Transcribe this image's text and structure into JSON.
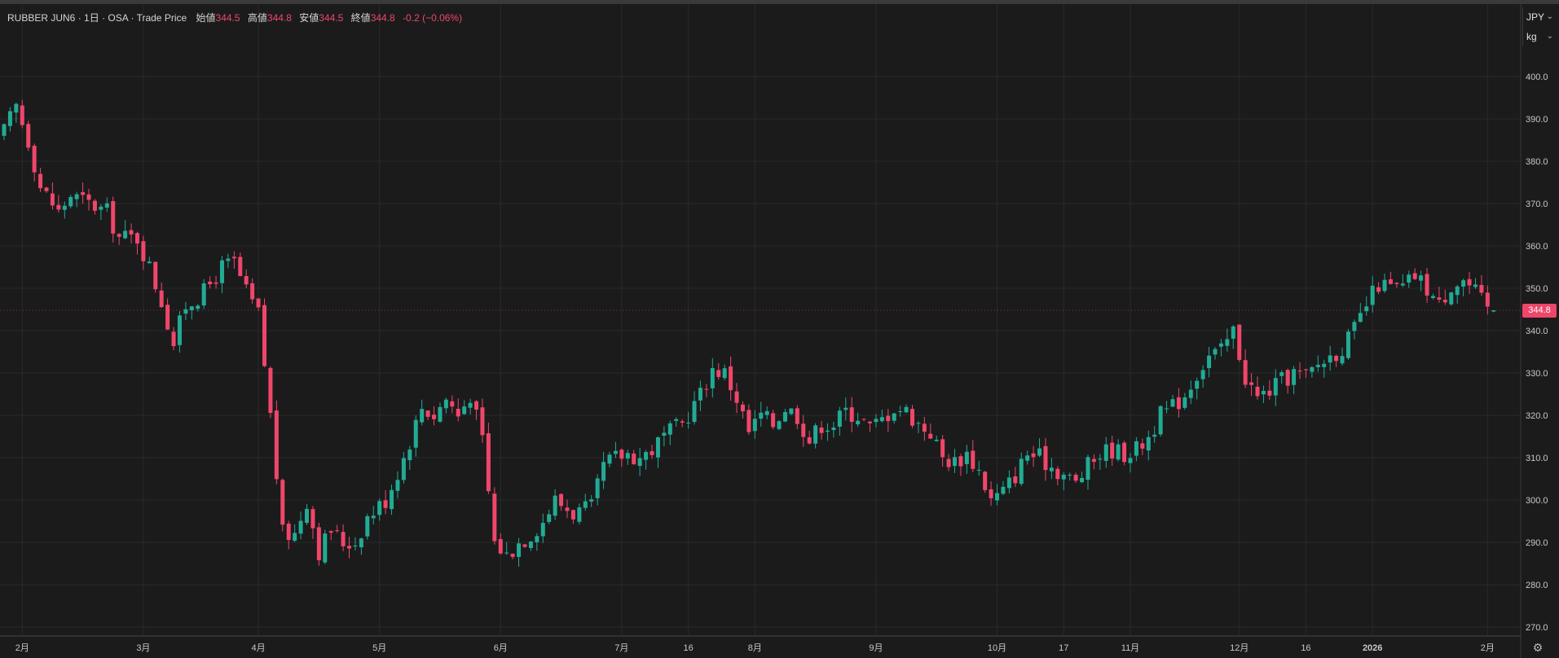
{
  "legend": {
    "symbol": "RUBBER JUN6",
    "sep1": "·",
    "interval": "1日",
    "sep2": "·",
    "exchange": "OSA",
    "sep3": "·",
    "source": "Trade Price",
    "open_label": "始値",
    "open_value": "344.5",
    "high_label": "高値",
    "high_value": "344.8",
    "low_label": "安値",
    "low_value": "344.5",
    "close_label": "終値",
    "close_value": "344.8",
    "change": "-0.2 (−0.06%)"
  },
  "currency_select": {
    "value": "JPY"
  },
  "unit_select": {
    "value": "kg"
  },
  "last_price_tag": "344.8",
  "colors": {
    "up": "#22ab94",
    "down": "#f0466a",
    "background": "#1b1b1c",
    "grid": "#2a2a2d",
    "axis_text": "#c8c8c8"
  },
  "icons": {
    "settings": "settings-icon",
    "chevron": "chevron-down-icon"
  },
  "chart_data": {
    "type": "candlestick",
    "y_ticks": [
      "270.0",
      "280.0",
      "290.0",
      "300.0",
      "310.0",
      "320.0",
      "330.0",
      "340.0",
      "350.0",
      "360.0",
      "370.0",
      "380.0",
      "390.0",
      "400.0"
    ],
    "ylim": [
      268,
      410
    ],
    "x_ticks": [
      {
        "label": "2月",
        "index": 3
      },
      {
        "label": "3月",
        "index": 23
      },
      {
        "label": "4月",
        "index": 42
      },
      {
        "label": "5月",
        "index": 62
      },
      {
        "label": "6月",
        "index": 82
      },
      {
        "label": "7月",
        "index": 102
      },
      {
        "label": "16",
        "index": 113
      },
      {
        "label": "8月",
        "index": 124
      },
      {
        "label": "9月",
        "index": 144
      },
      {
        "label": "10月",
        "index": 164
      },
      {
        "label": "17",
        "index": 175
      },
      {
        "label": "11月",
        "index": 186
      },
      {
        "label": "12月",
        "index": 204
      },
      {
        "label": "16",
        "index": 215
      },
      {
        "label": "2026",
        "index": 226
      },
      {
        "label": "2月",
        "index": 245
      }
    ],
    "x_slots": 250,
    "last_price": 344.8,
    "anchors": [
      [
        0,
        387
      ],
      [
        2,
        393
      ],
      [
        4,
        385
      ],
      [
        6,
        374
      ],
      [
        9,
        368
      ],
      [
        11,
        372
      ],
      [
        14,
        370
      ],
      [
        17,
        368
      ],
      [
        19,
        362
      ],
      [
        22,
        362
      ],
      [
        24,
        355
      ],
      [
        26,
        347
      ],
      [
        28,
        337
      ],
      [
        30,
        346
      ],
      [
        33,
        349
      ],
      [
        36,
        355
      ],
      [
        38,
        356
      ],
      [
        40,
        349
      ],
      [
        42,
        344
      ],
      [
        44,
        320
      ],
      [
        46,
        292
      ],
      [
        48,
        292
      ],
      [
        50,
        300
      ],
      [
        52,
        288
      ],
      [
        54,
        293
      ],
      [
        56,
        290
      ],
      [
        58,
        290
      ],
      [
        60,
        296
      ],
      [
        63,
        300
      ],
      [
        66,
        310
      ],
      [
        69,
        322
      ],
      [
        71,
        320
      ],
      [
        73,
        324
      ],
      [
        75,
        320
      ],
      [
        77,
        325
      ],
      [
        79,
        314
      ],
      [
        81,
        290
      ],
      [
        83,
        287
      ],
      [
        85,
        290
      ],
      [
        87,
        292
      ],
      [
        89,
        295
      ],
      [
        91,
        300
      ],
      [
        94,
        297
      ],
      [
        97,
        298
      ],
      [
        99,
        308
      ],
      [
        101,
        310
      ],
      [
        103,
        311
      ],
      [
        105,
        310
      ],
      [
        107,
        312
      ],
      [
        109,
        315
      ],
      [
        112,
        318
      ],
      [
        115,
        325
      ],
      [
        117,
        331
      ],
      [
        119,
        330
      ],
      [
        121,
        324
      ],
      [
        123,
        316
      ],
      [
        125,
        320
      ],
      [
        127,
        318
      ],
      [
        129,
        322
      ],
      [
        131,
        320
      ],
      [
        133,
        314
      ],
      [
        135,
        318
      ],
      [
        137,
        318
      ],
      [
        139,
        321
      ],
      [
        141,
        320
      ],
      [
        143,
        317
      ],
      [
        145,
        319
      ],
      [
        147,
        322
      ],
      [
        149,
        321
      ],
      [
        151,
        318
      ],
      [
        153,
        316
      ],
      [
        155,
        310
      ],
      [
        157,
        309
      ],
      [
        159,
        311
      ],
      [
        161,
        307
      ],
      [
        163,
        300
      ],
      [
        165,
        302
      ],
      [
        167,
        306
      ],
      [
        169,
        311
      ],
      [
        171,
        310
      ],
      [
        173,
        308
      ],
      [
        175,
        306
      ],
      [
        177,
        304
      ],
      [
        179,
        308
      ],
      [
        181,
        311
      ],
      [
        183,
        312
      ],
      [
        185,
        311
      ],
      [
        187,
        312
      ],
      [
        189,
        315
      ],
      [
        191,
        320
      ],
      [
        193,
        322
      ],
      [
        195,
        325
      ],
      [
        197,
        330
      ],
      [
        199,
        334
      ],
      [
        201,
        335
      ],
      [
        203,
        340
      ],
      [
        205,
        329
      ],
      [
        207,
        324
      ],
      [
        209,
        326
      ],
      [
        211,
        328
      ],
      [
        213,
        330
      ],
      [
        215,
        329
      ],
      [
        217,
        332
      ],
      [
        219,
        334
      ],
      [
        221,
        336
      ],
      [
        223,
        340
      ],
      [
        225,
        346
      ],
      [
        227,
        351
      ],
      [
        229,
        350
      ],
      [
        231,
        350
      ],
      [
        233,
        353
      ],
      [
        235,
        350
      ],
      [
        237,
        346
      ],
      [
        239,
        351
      ],
      [
        241,
        352
      ],
      [
        243,
        349
      ],
      [
        245,
        345
      ],
      [
        246,
        344.8
      ]
    ]
  }
}
